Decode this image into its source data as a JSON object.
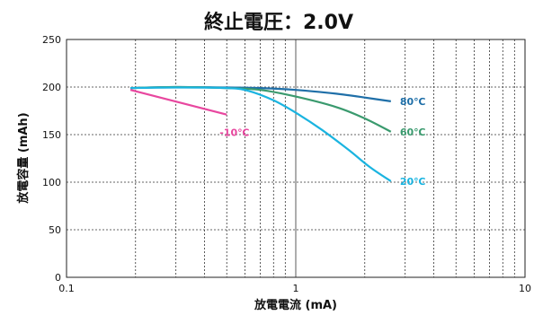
{
  "chart_data": {
    "type": "line",
    "title": "終止電圧：2.0V",
    "xlabel": "放電電流 (mA)",
    "ylabel": "放電容量 (mAh)",
    "xscale": "log",
    "xlim": [
      0.1,
      10
    ],
    "ylim": [
      0,
      250
    ],
    "x_ticks": [
      {
        "value": 0.1,
        "label": "0.1"
      },
      {
        "value": 1,
        "label": "1"
      },
      {
        "value": 10,
        "label": "10"
      }
    ],
    "y_ticks": [
      {
        "value": 0,
        "label": "0"
      },
      {
        "value": 50,
        "label": "50"
      },
      {
        "value": 100,
        "label": "100"
      },
      {
        "value": 150,
        "label": "150"
      },
      {
        "value": 200,
        "label": "200"
      },
      {
        "value": 250,
        "label": "250"
      }
    ],
    "grid": true,
    "series": [
      {
        "name": "80℃",
        "color": "#1f6fa8",
        "points": [
          [
            0.19,
            199
          ],
          [
            0.3,
            200
          ],
          [
            0.5,
            199.5
          ],
          [
            0.7,
            199
          ],
          [
            1.0,
            197
          ],
          [
            1.5,
            193
          ],
          [
            2.0,
            189
          ],
          [
            2.6,
            185
          ]
        ]
      },
      {
        "name": "60℃",
        "color": "#3a9a6e",
        "points": [
          [
            0.19,
            199
          ],
          [
            0.3,
            200
          ],
          [
            0.5,
            199
          ],
          [
            0.7,
            197
          ],
          [
            1.0,
            190
          ],
          [
            1.5,
            179
          ],
          [
            2.0,
            167
          ],
          [
            2.6,
            153
          ]
        ]
      },
      {
        "name": "20℃",
        "color": "#1ab4e0",
        "points": [
          [
            0.19,
            199
          ],
          [
            0.3,
            199.5
          ],
          [
            0.5,
            199
          ],
          [
            0.62,
            196
          ],
          [
            0.8,
            186
          ],
          [
            1.0,
            173
          ],
          [
            1.3,
            155
          ],
          [
            1.7,
            134
          ],
          [
            2.1,
            116
          ],
          [
            2.6,
            101
          ]
        ]
      },
      {
        "name": "-10℃",
        "color": "#e8479f",
        "points": [
          [
            0.19,
            197
          ],
          [
            0.5,
            171
          ]
        ]
      }
    ]
  }
}
